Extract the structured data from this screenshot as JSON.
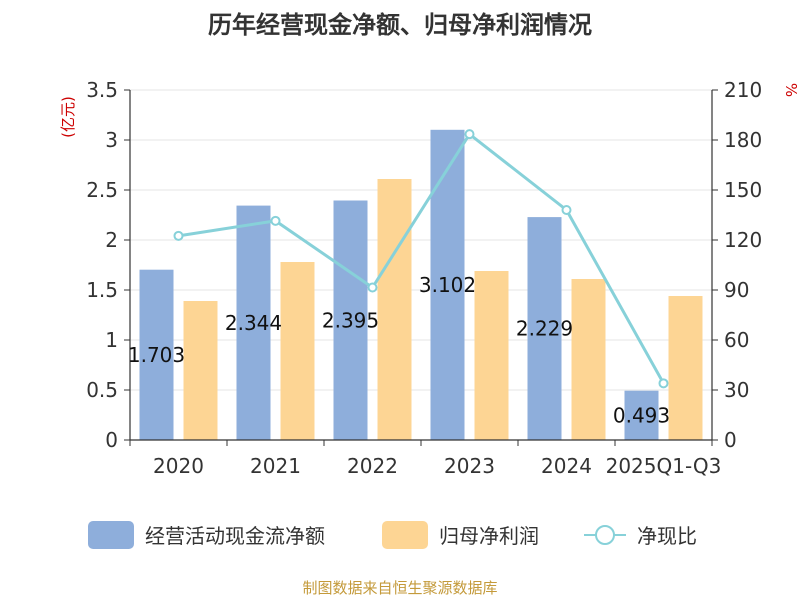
{
  "chart_data": {
    "type": "bar",
    "title": "历年经营现金净额、归母净利润情况",
    "source": "制图数据来自恒生聚源数据库",
    "left_axis": {
      "unit_label": "(亿元)",
      "ylim": [
        0,
        3.5
      ],
      "ticks": [
        "0",
        "0.5",
        "1",
        "1.5",
        "2",
        "2.5",
        "3",
        "3.5"
      ]
    },
    "right_axis": {
      "unit_label": "%",
      "ylim": [
        0,
        210
      ],
      "ticks": [
        "0",
        "30",
        "60",
        "90",
        "120",
        "150",
        "180",
        "210"
      ]
    },
    "categories": [
      "2020",
      "2021",
      "2022",
      "2023",
      "2024",
      "2025Q1-Q3"
    ],
    "series": [
      {
        "name": "经营活动现金流净额",
        "type": "bar",
        "axis": "left",
        "color": "#8eaedb",
        "values": [
          1.703,
          2.344,
          2.395,
          3.102,
          2.229,
          0.493
        ],
        "labels": [
          "1.703",
          "2.344",
          "2.395",
          "3.102",
          "2.229",
          "0.493"
        ]
      },
      {
        "name": "归母净利润",
        "type": "bar",
        "axis": "left",
        "color": "#fdd594",
        "values": [
          1.39,
          1.78,
          2.61,
          1.69,
          1.61,
          1.44
        ]
      },
      {
        "name": "净现比",
        "type": "line",
        "axis": "right",
        "color": "#87d1d9",
        "values": [
          122.5,
          131.5,
          91.5,
          183.5,
          138.0,
          34.0
        ]
      }
    ],
    "legend_position": "bottom",
    "grid": true
  }
}
